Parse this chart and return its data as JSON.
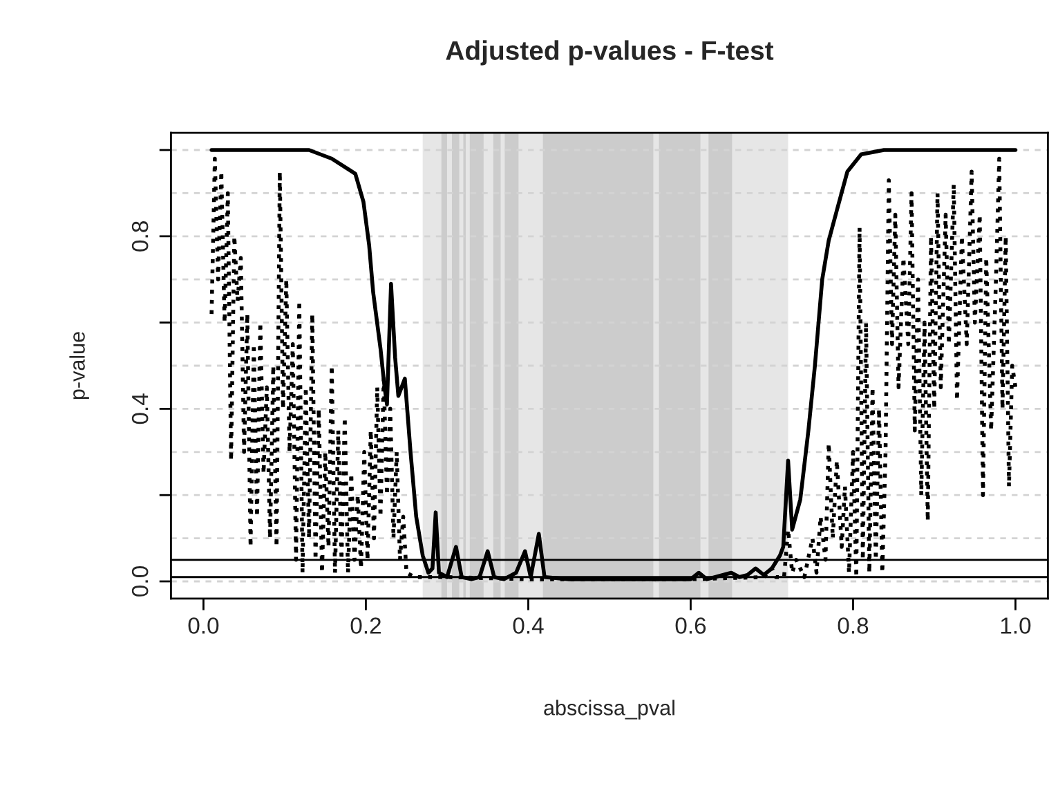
{
  "chart_data": {
    "type": "line",
    "title": "Adjusted p-values - F-test",
    "xlabel": "abscissa_pval",
    "ylabel": "p-value",
    "xlim": [
      -0.04,
      1.04
    ],
    "ylim": [
      -0.04,
      1.04
    ],
    "xticks": [
      {
        "value": 0,
        "label": "0.0"
      },
      {
        "value": 0.2,
        "label": "0.2"
      },
      {
        "value": 0.4,
        "label": "0.4"
      },
      {
        "value": 0.6,
        "label": "0.6"
      },
      {
        "value": 0.8,
        "label": "0.8"
      },
      {
        "value": 1,
        "label": "1.0"
      }
    ],
    "yticks": [
      {
        "value": 0,
        "label": "0.0"
      },
      {
        "value": 0.2,
        "label": null
      },
      {
        "value": 0.4,
        "label": "0.4"
      },
      {
        "value": 0.6,
        "label": null
      },
      {
        "value": 0.8,
        "label": "0.8"
      },
      {
        "value": 1,
        "label": null
      }
    ],
    "grid": false,
    "legend": false,
    "marker": "none",
    "series": [
      {
        "color": "#000000",
        "line_style": "solid",
        "x": [
          0.01,
          0.13,
          0.158,
          0.187,
          0.197,
          0.204,
          0.209,
          0.218,
          0.223,
          0.226,
          0.231,
          0.236,
          0.24,
          0.248,
          0.255,
          0.262,
          0.27,
          0.277,
          0.282,
          0.286,
          0.29,
          0.3,
          0.311,
          0.318,
          0.33,
          0.34,
          0.35,
          0.358,
          0.37,
          0.385,
          0.396,
          0.403,
          0.413,
          0.42,
          0.45,
          0.5,
          0.55,
          0.6,
          0.61,
          0.62,
          0.65,
          0.66,
          0.67,
          0.68,
          0.69,
          0.7,
          0.71,
          0.714,
          0.72,
          0.725,
          0.735,
          0.745,
          0.753,
          0.762,
          0.77,
          0.78,
          0.793,
          0.81,
          0.838,
          1.0
        ],
        "values": [
          1.0,
          1.0,
          0.98,
          0.945,
          0.88,
          0.78,
          0.67,
          0.54,
          0.45,
          0.41,
          0.69,
          0.52,
          0.43,
          0.47,
          0.3,
          0.15,
          0.06,
          0.02,
          0.03,
          0.16,
          0.02,
          0.01,
          0.08,
          0.01,
          0.005,
          0.01,
          0.07,
          0.01,
          0.005,
          0.02,
          0.07,
          0.01,
          0.11,
          0.01,
          0.005,
          0.005,
          0.005,
          0.005,
          0.02,
          0.005,
          0.02,
          0.01,
          0.015,
          0.03,
          0.015,
          0.03,
          0.06,
          0.08,
          0.28,
          0.12,
          0.19,
          0.35,
          0.5,
          0.7,
          0.79,
          0.86,
          0.95,
          0.99,
          1.0,
          1.0
        ]
      },
      {
        "color": "#000000",
        "line_style": "dotted",
        "x": [
          0.01,
          0.014,
          0.018,
          0.022,
          0.026,
          0.03,
          0.034,
          0.038,
          0.042,
          0.046,
          0.05,
          0.054,
          0.058,
          0.062,
          0.066,
          0.07,
          0.074,
          0.078,
          0.082,
          0.086,
          0.09,
          0.094,
          0.098,
          0.102,
          0.106,
          0.11,
          0.114,
          0.118,
          0.122,
          0.126,
          0.13,
          0.134,
          0.138,
          0.142,
          0.146,
          0.15,
          0.154,
          0.158,
          0.162,
          0.166,
          0.17,
          0.174,
          0.178,
          0.182,
          0.186,
          0.19,
          0.194,
          0.198,
          0.202,
          0.206,
          0.21,
          0.214,
          0.218,
          0.222,
          0.226,
          0.23,
          0.234,
          0.238,
          0.242,
          0.246,
          0.25,
          0.26,
          0.3,
          0.4,
          0.5,
          0.6,
          0.69,
          0.7,
          0.705,
          0.715,
          0.72,
          0.725,
          0.73,
          0.74,
          0.75,
          0.755,
          0.76,
          0.766,
          0.77,
          0.775,
          0.78,
          0.786,
          0.79,
          0.795,
          0.8,
          0.804,
          0.808,
          0.812,
          0.816,
          0.82,
          0.824,
          0.828,
          0.832,
          0.836,
          0.84,
          0.844,
          0.848,
          0.852,
          0.856,
          0.862,
          0.868,
          0.872,
          0.876,
          0.88,
          0.884,
          0.888,
          0.892,
          0.896,
          0.9,
          0.904,
          0.908,
          0.914,
          0.918,
          0.924,
          0.928,
          0.934,
          0.94,
          0.946,
          0.95,
          0.956,
          0.96,
          0.964,
          0.97,
          0.976,
          0.98,
          0.984,
          0.988,
          0.992,
          0.996,
          1.0
        ],
        "values": [
          0.62,
          0.98,
          0.7,
          0.95,
          0.6,
          0.9,
          0.28,
          0.8,
          0.65,
          0.75,
          0.3,
          0.62,
          0.08,
          0.55,
          0.15,
          0.6,
          0.25,
          0.45,
          0.1,
          0.5,
          0.08,
          0.95,
          0.4,
          0.7,
          0.3,
          0.55,
          0.05,
          0.65,
          0.02,
          0.45,
          0.1,
          0.62,
          0.05,
          0.4,
          0.02,
          0.3,
          0.08,
          0.5,
          0.02,
          0.35,
          0.05,
          0.38,
          0.02,
          0.25,
          0.05,
          0.2,
          0.03,
          0.3,
          0.05,
          0.35,
          0.1,
          0.45,
          0.15,
          0.47,
          0.2,
          0.4,
          0.1,
          0.3,
          0.05,
          0.15,
          0.02,
          0.01,
          0.01,
          0.005,
          0.005,
          0.005,
          0.01,
          0.03,
          0.01,
          0.01,
          0.12,
          0.02,
          0.05,
          0.01,
          0.1,
          0.02,
          0.15,
          0.05,
          0.32,
          0.1,
          0.28,
          0.08,
          0.22,
          0.02,
          0.3,
          0.01,
          0.82,
          0.05,
          0.6,
          0.02,
          0.45,
          0.05,
          0.4,
          0.02,
          0.3,
          0.93,
          0.55,
          0.85,
          0.45,
          0.75,
          0.55,
          0.9,
          0.35,
          0.7,
          0.2,
          0.6,
          0.14,
          0.8,
          0.4,
          0.9,
          0.45,
          0.85,
          0.55,
          0.92,
          0.42,
          0.8,
          0.55,
          0.95,
          0.6,
          0.85,
          0.2,
          0.75,
          0.35,
          0.7,
          0.98,
          0.4,
          0.8,
          0.22,
          0.5,
          0.45
        ]
      }
    ],
    "ref_lines": [
      {
        "axis": "y",
        "value": 0.0,
        "color": "#d3d3d3",
        "line_style": "dotted"
      },
      {
        "axis": "y",
        "value": 0.1,
        "color": "#d3d3d3",
        "line_style": "dotted"
      },
      {
        "axis": "y",
        "value": 0.2,
        "color": "#d3d3d3",
        "line_style": "dotted"
      },
      {
        "axis": "y",
        "value": 0.3,
        "color": "#d3d3d3",
        "line_style": "dotted"
      },
      {
        "axis": "y",
        "value": 0.4,
        "color": "#d3d3d3",
        "line_style": "dotted"
      },
      {
        "axis": "y",
        "value": 0.5,
        "color": "#d3d3d3",
        "line_style": "dotted"
      },
      {
        "axis": "y",
        "value": 0.6,
        "color": "#d3d3d3",
        "line_style": "dotted"
      },
      {
        "axis": "y",
        "value": 0.7,
        "color": "#d3d3d3",
        "line_style": "dotted"
      },
      {
        "axis": "y",
        "value": 0.8,
        "color": "#d3d3d3",
        "line_style": "dotted"
      },
      {
        "axis": "y",
        "value": 0.9,
        "color": "#d3d3d3",
        "line_style": "dotted"
      },
      {
        "axis": "y",
        "value": 1.0,
        "color": "#d3d3d3",
        "line_style": "dotted"
      },
      {
        "axis": "y",
        "value": 0.05,
        "color": "#000000",
        "line_style": "solid"
      },
      {
        "axis": "y",
        "value": 0.01,
        "color": "#000000",
        "line_style": "solid"
      }
    ],
    "bands": [
      {
        "axis": "x",
        "from": 0.27,
        "to": 0.72,
        "color": "#e6e6e6"
      },
      {
        "axis": "x",
        "from": 0.293,
        "to": 0.3,
        "color": "#cccccc"
      },
      {
        "axis": "x",
        "from": 0.306,
        "to": 0.315,
        "color": "#cccccc"
      },
      {
        "axis": "x",
        "from": 0.32,
        "to": 0.323,
        "color": "#cccccc"
      },
      {
        "axis": "x",
        "from": 0.328,
        "to": 0.345,
        "color": "#cccccc"
      },
      {
        "axis": "x",
        "from": 0.357,
        "to": 0.366,
        "color": "#cccccc"
      },
      {
        "axis": "x",
        "from": 0.371,
        "to": 0.388,
        "color": "#cccccc"
      },
      {
        "axis": "x",
        "from": 0.418,
        "to": 0.554,
        "color": "#cccccc"
      },
      {
        "axis": "x",
        "from": 0.561,
        "to": 0.612,
        "color": "#cccccc"
      },
      {
        "axis": "x",
        "from": 0.622,
        "to": 0.651,
        "color": "#cccccc"
      }
    ]
  }
}
